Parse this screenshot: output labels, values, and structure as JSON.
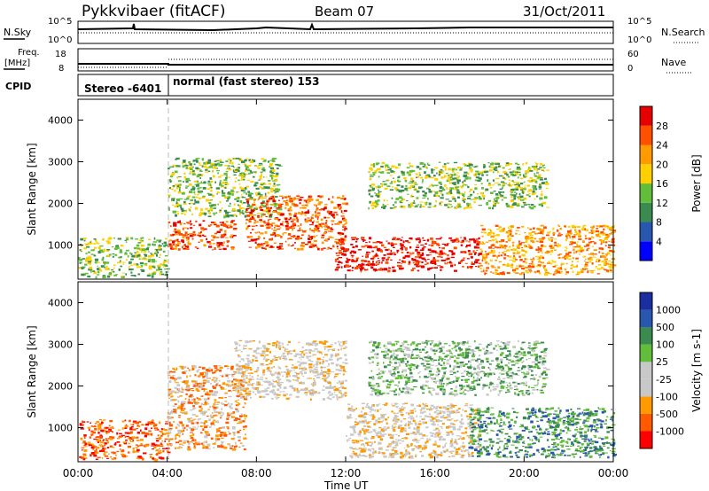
{
  "header": {
    "station": "Pykkvibaer (fitACF)",
    "beam": "Beam 07",
    "date": "31/Oct/2011"
  },
  "status_panels": {
    "nsky_label": "N.Sky",
    "nsearch_label": "N.Search",
    "noise_ticks": [
      "10^5",
      "10^0"
    ],
    "freq_label": "Freq.",
    "freq_unit": "[MHz]",
    "freq_ticks": [
      "18",
      "8"
    ],
    "nave_label": "Nave",
    "nave_ticks": [
      "60",
      "0"
    ],
    "cpid_label": "CPID",
    "cpid_modes": [
      {
        "label": "Stereo -6401",
        "start_hour": 0,
        "end_hour": 4
      },
      {
        "label": "normal (fast stereo) 153",
        "start_hour": 4,
        "end_hour": 24
      }
    ]
  },
  "x_axis": {
    "label": "Time UT",
    "tick_labels": [
      "00:00",
      "04:00",
      "08:00",
      "12:00",
      "16:00",
      "20:00",
      "00:00"
    ]
  },
  "chart_data": [
    {
      "type": "heatmap",
      "name": "power",
      "ylabel": "Slant Range [km]",
      "xlim": [
        0,
        24
      ],
      "ylim": [
        180,
        4500
      ],
      "yticks": [
        1000,
        2000,
        3000,
        4000
      ],
      "colorbar": {
        "label": "Power [dB]",
        "tick_labels": [
          "28",
          "24",
          "20",
          "16",
          "12",
          "8",
          "4"
        ],
        "colors": [
          "#0000ff",
          "#2a56b0",
          "#3b8a4f",
          "#61bd3a",
          "#ffd000",
          "#ff9a00",
          "#ff5000",
          "#e60000"
        ]
      },
      "regions": [
        {
          "t0": 0.0,
          "t1": 4.0,
          "r0": 250,
          "r1": 1200,
          "level": 3
        },
        {
          "t0": 4.0,
          "t1": 7.0,
          "r0": 900,
          "r1": 1600,
          "level": 6
        },
        {
          "t0": 4.0,
          "t1": 9.0,
          "r0": 1700,
          "r1": 3100,
          "level": 3
        },
        {
          "t0": 7.5,
          "t1": 12.0,
          "r0": 900,
          "r1": 2200,
          "level": 6
        },
        {
          "t0": 11.5,
          "t1": 18.0,
          "r0": 400,
          "r1": 1200,
          "level": 7
        },
        {
          "t0": 13.0,
          "t1": 21.0,
          "r0": 1900,
          "r1": 3000,
          "level": 3
        },
        {
          "t0": 18.0,
          "t1": 24.0,
          "r0": 300,
          "r1": 1500,
          "level": 5
        }
      ]
    },
    {
      "type": "heatmap",
      "name": "velocity",
      "ylabel": "Slant Range [km]",
      "xlim": [
        0,
        24
      ],
      "ylim": [
        180,
        4500
      ],
      "yticks": [
        1000,
        2000,
        3000,
        4000
      ],
      "colorbar": {
        "label": "Velocity [m s-1]",
        "tick_labels": [
          "1000",
          "500",
          "100",
          "25",
          "-25",
          "-100",
          "-500",
          "-1000"
        ],
        "colors": [
          "#ff0000",
          "#ff5a00",
          "#ff9a00",
          "#c8c8c8",
          "#c8c8c8",
          "#61bd3a",
          "#3b8a4f",
          "#2a56b0",
          "#1a2ea0"
        ]
      },
      "regions": [
        {
          "t0": 0.0,
          "t1": 4.0,
          "r0": 250,
          "r1": 1200,
          "level": 1
        },
        {
          "t0": 4.0,
          "t1": 7.5,
          "r0": 500,
          "r1": 2500,
          "level": 2
        },
        {
          "t0": 7.0,
          "t1": 12.0,
          "r0": 1700,
          "r1": 3100,
          "level": 3
        },
        {
          "t0": 12.0,
          "t1": 18.0,
          "r0": 300,
          "r1": 1600,
          "level": 3
        },
        {
          "t0": 13.0,
          "t1": 21.0,
          "r0": 1800,
          "r1": 3100,
          "level": 5
        },
        {
          "t0": 17.5,
          "t1": 24.0,
          "r0": 300,
          "r1": 1500,
          "level": 6
        }
      ]
    }
  ]
}
